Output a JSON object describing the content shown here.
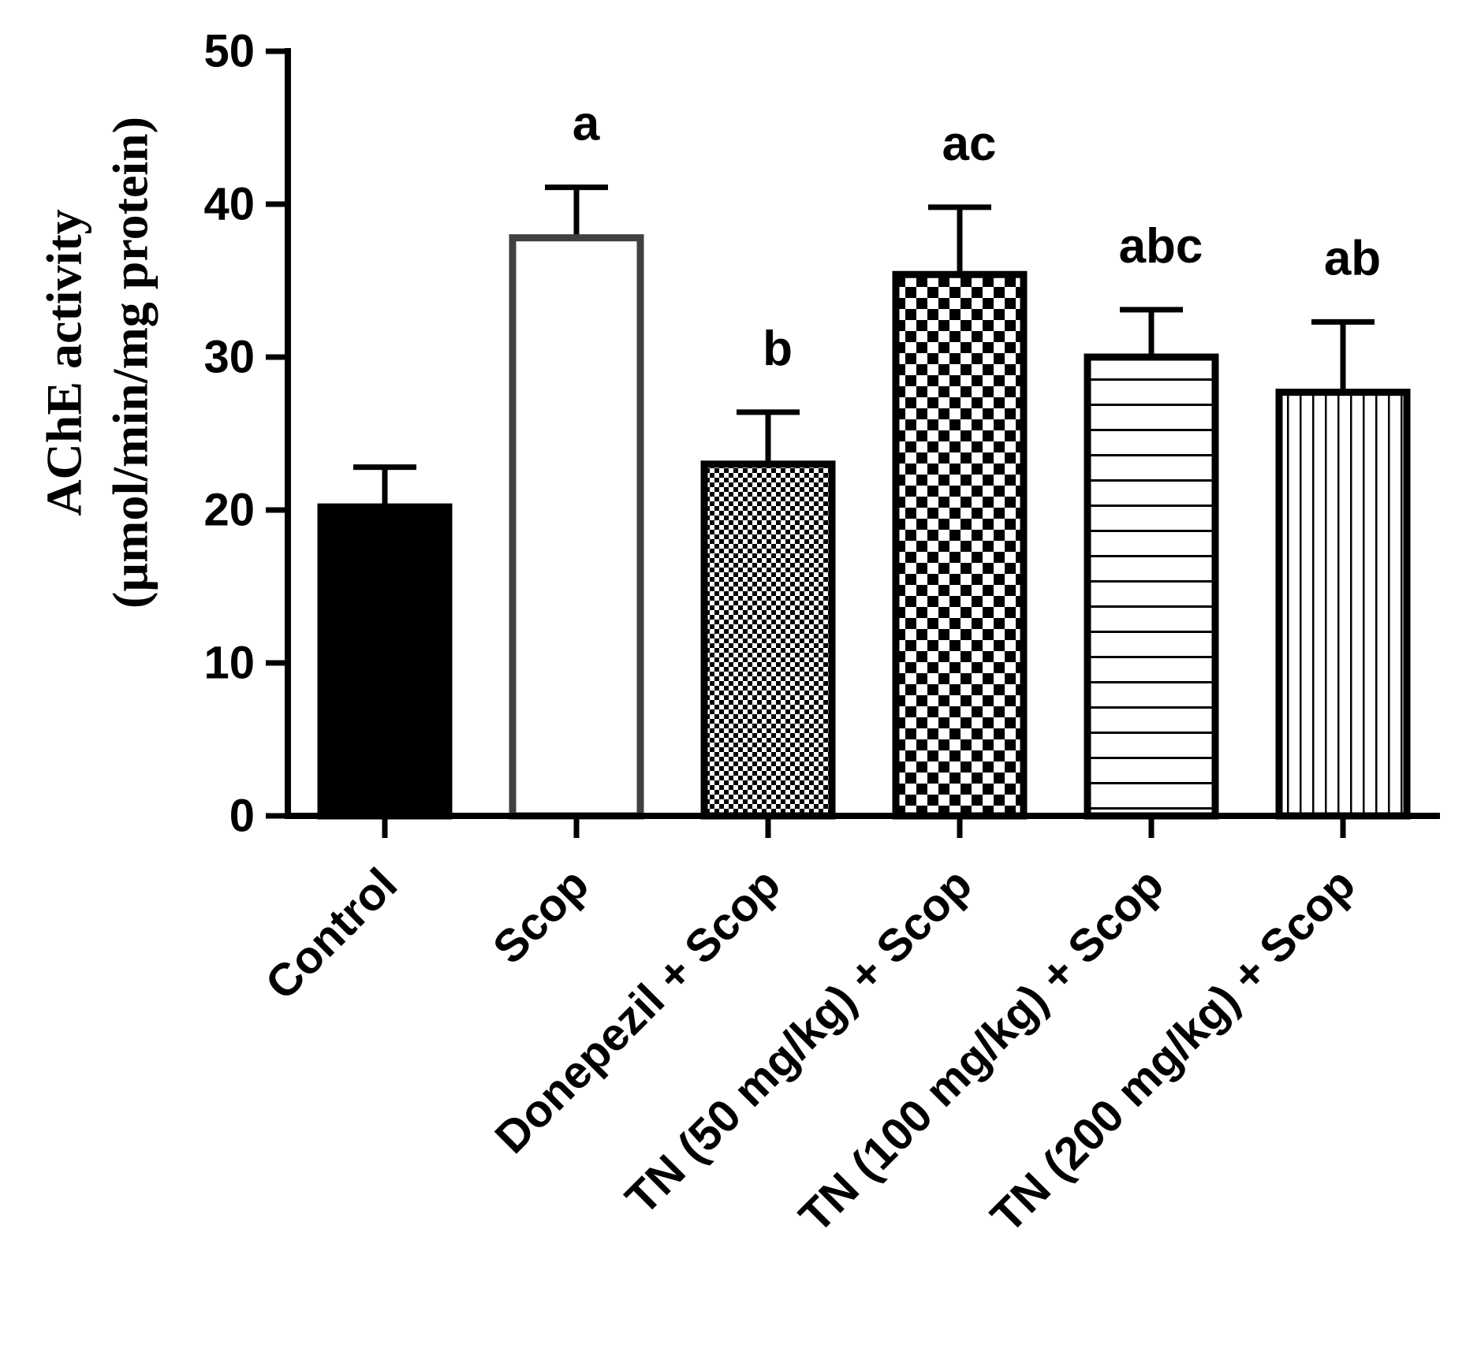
{
  "chart_data": {
    "type": "bar",
    "title": "",
    "xlabel": "",
    "ylabel_line1": "AChE activity",
    "ylabel_line2": "(µmol/min/mg protein)",
    "ylim": [
      0,
      50
    ],
    "yticks": [
      0,
      10,
      20,
      30,
      40,
      50
    ],
    "categories": [
      "Control",
      "Scop",
      "Donepezil + Scop",
      "TN (50 mg/kg) + Scop",
      "TN (100 mg/kg) + Scop",
      "TN (200 mg/kg) + Scop"
    ],
    "values": [
      20.2,
      37.8,
      23.0,
      35.4,
      30.0,
      27.7
    ],
    "errors": [
      2.6,
      3.3,
      3.4,
      4.4,
      3.1,
      4.6
    ],
    "significance": [
      "",
      "a",
      "b",
      "ac",
      "abc",
      "ab"
    ],
    "fills": [
      "solid-black",
      "white",
      "fine-checker",
      "coarse-checker",
      "horizontal-lines",
      "vertical-lines"
    ],
    "grid": false,
    "legend": "none"
  }
}
